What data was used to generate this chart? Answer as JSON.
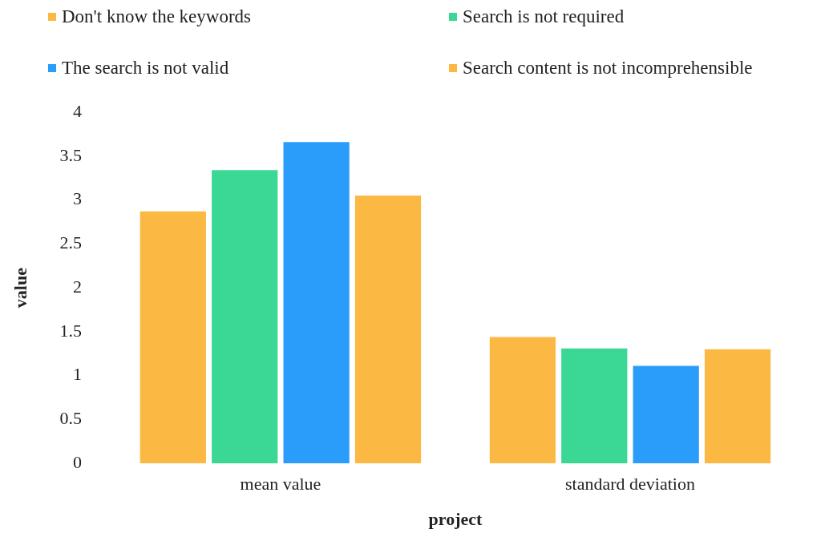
{
  "chart_data": {
    "type": "bar",
    "xlabel": "project",
    "ylabel": "value",
    "categories": [
      "mean value",
      "standard deviation"
    ],
    "series": [
      {
        "name": "Don't know the keywords",
        "color": "#fbb843",
        "values": [
          2.87,
          1.44
        ]
      },
      {
        "name": "Search is not required",
        "color": "#3ad894",
        "values": [
          3.34,
          1.31
        ]
      },
      {
        "name": "The search is not valid",
        "color": "#2a9dfa",
        "values": [
          3.66,
          1.11
        ]
      },
      {
        "name": "Search content is not incomprehensible",
        "color": "#fbb843",
        "values": [
          3.05,
          1.3
        ]
      }
    ],
    "ylim": [
      0,
      4
    ],
    "yticks": [
      0,
      0.5,
      1,
      1.5,
      2,
      2.5,
      3,
      3.5,
      4
    ],
    "grid": false,
    "legend": "top"
  }
}
